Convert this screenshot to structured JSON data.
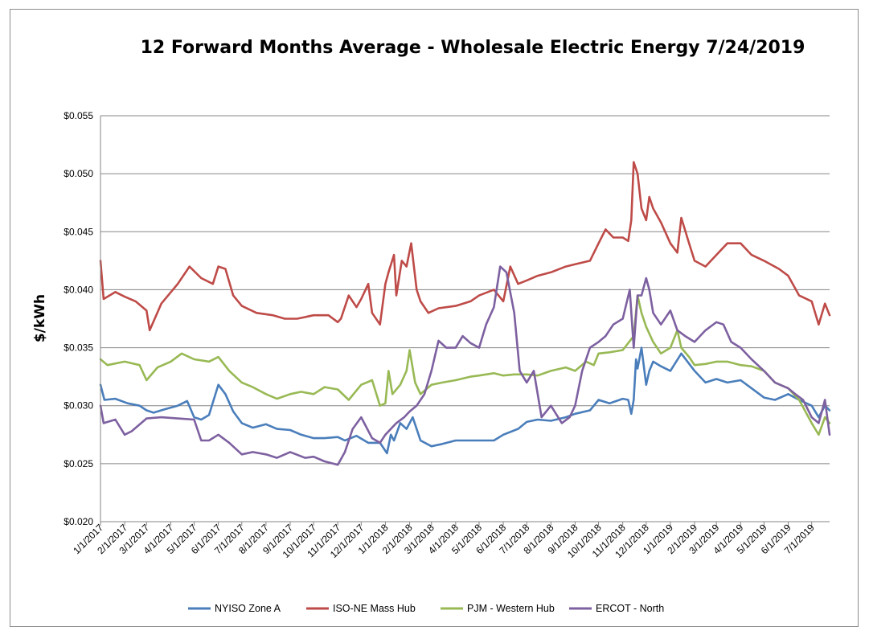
{
  "chart_data": {
    "type": "line",
    "title": "12 Forward Months Average - Wholesale Electric Energy 7/24/2019",
    "xlabel": "",
    "ylabel": "$/kWh",
    "ylim": [
      0.02,
      0.055
    ],
    "yticks": [
      0.02,
      0.025,
      0.03,
      0.035,
      0.04,
      0.045,
      0.05,
      0.055
    ],
    "ytick_labels": [
      "$0.020",
      "$0.025",
      "$0.030",
      "$0.035",
      "$0.040",
      "$0.045",
      "$0.050",
      "$0.055"
    ],
    "xlim": [
      "2017-01-01",
      "2019-07-24"
    ],
    "xtick_labels": [
      "1/1/2017",
      "2/1/2017",
      "3/1/2017",
      "4/1/2017",
      "5/1/2017",
      "6/1/2017",
      "7/1/2017",
      "8/1/2017",
      "9/1/2017",
      "10/1/2017",
      "11/1/2017",
      "12/1/2017",
      "1/1/2018",
      "2/1/2018",
      "3/1/2018",
      "4/1/2018",
      "5/1/2018",
      "6/1/2018",
      "7/1/2018",
      "8/1/2018",
      "9/1/2018",
      "10/1/2018",
      "11/1/2018",
      "12/1/2018",
      "1/1/2019",
      "2/1/2019",
      "3/1/2019",
      "4/1/2019",
      "5/1/2019",
      "6/1/2019",
      "7/1/2019"
    ],
    "grid": "horizontal",
    "legend_position": "bottom",
    "series": [
      {
        "name": "NYISO Zone A",
        "color": "#4a7ebb",
        "x": [
          "2017-01-01",
          "2017-01-06",
          "2017-01-20",
          "2017-02-05",
          "2017-02-20",
          "2017-03-01",
          "2017-03-10",
          "2017-03-25",
          "2017-04-10",
          "2017-04-22",
          "2017-05-01",
          "2017-05-10",
          "2017-05-20",
          "2017-06-01",
          "2017-06-10",
          "2017-06-20",
          "2017-07-01",
          "2017-07-15",
          "2017-08-01",
          "2017-08-15",
          "2017-09-01",
          "2017-09-15",
          "2017-10-01",
          "2017-10-15",
          "2017-11-01",
          "2017-11-10",
          "2017-11-25",
          "2017-12-10",
          "2017-12-25",
          "2018-01-03",
          "2018-01-08",
          "2018-01-12",
          "2018-01-20",
          "2018-01-28",
          "2018-02-05",
          "2018-02-15",
          "2018-03-01",
          "2018-03-15",
          "2018-04-01",
          "2018-04-20",
          "2018-05-01",
          "2018-05-20",
          "2018-06-01",
          "2018-06-20",
          "2018-07-01",
          "2018-07-15",
          "2018-08-01",
          "2018-08-20",
          "2018-09-01",
          "2018-09-20",
          "2018-10-01",
          "2018-10-15",
          "2018-11-01",
          "2018-11-08",
          "2018-11-12",
          "2018-11-15",
          "2018-11-18",
          "2018-11-20",
          "2018-11-25",
          "2018-12-01",
          "2018-12-05",
          "2018-12-10",
          "2018-12-20",
          "2019-01-01",
          "2019-01-15",
          "2019-02-01",
          "2019-02-15",
          "2019-03-01",
          "2019-03-15",
          "2019-04-01",
          "2019-04-15",
          "2019-05-01",
          "2019-05-15",
          "2019-06-01",
          "2019-06-15",
          "2019-07-01",
          "2019-07-10",
          "2019-07-18",
          "2019-07-24"
        ],
        "y": [
          0.0318,
          0.0305,
          0.0306,
          0.0302,
          0.03,
          0.0296,
          0.0294,
          0.0297,
          0.03,
          0.0304,
          0.029,
          0.0288,
          0.0292,
          0.0318,
          0.031,
          0.0295,
          0.0285,
          0.0281,
          0.0284,
          0.028,
          0.0279,
          0.0275,
          0.0272,
          0.0272,
          0.0273,
          0.027,
          0.0274,
          0.0268,
          0.0268,
          0.0259,
          0.0275,
          0.027,
          0.0285,
          0.028,
          0.029,
          0.027,
          0.0265,
          0.0267,
          0.027,
          0.027,
          0.027,
          0.027,
          0.0275,
          0.028,
          0.0286,
          0.0288,
          0.0287,
          0.029,
          0.0293,
          0.0296,
          0.0305,
          0.0302,
          0.0306,
          0.0305,
          0.0293,
          0.0305,
          0.034,
          0.0332,
          0.035,
          0.0318,
          0.033,
          0.0338,
          0.0334,
          0.033,
          0.0345,
          0.033,
          0.032,
          0.0323,
          0.032,
          0.0322,
          0.0315,
          0.0307,
          0.0305,
          0.031,
          0.0305,
          0.03,
          0.029,
          0.03,
          0.0296
        ]
      },
      {
        "name": "ISO-NE Mass Hub",
        "color": "#be4b48",
        "x": [
          "2017-01-01",
          "2017-01-05",
          "2017-01-20",
          "2017-02-01",
          "2017-02-15",
          "2017-03-01",
          "2017-03-05",
          "2017-03-20",
          "2017-04-10",
          "2017-04-25",
          "2017-05-10",
          "2017-05-25",
          "2017-06-01",
          "2017-06-10",
          "2017-06-20",
          "2017-07-01",
          "2017-07-20",
          "2017-08-10",
          "2017-08-25",
          "2017-09-10",
          "2017-10-01",
          "2017-10-20",
          "2017-11-01",
          "2017-11-05",
          "2017-11-15",
          "2017-11-25",
          "2017-12-01",
          "2017-12-10",
          "2017-12-15",
          "2017-12-25",
          "2018-01-01",
          "2018-01-05",
          "2018-01-12",
          "2018-01-15",
          "2018-01-22",
          "2018-01-28",
          "2018-02-03",
          "2018-02-10",
          "2018-02-15",
          "2018-02-25",
          "2018-03-10",
          "2018-04-01",
          "2018-04-20",
          "2018-05-01",
          "2018-05-20",
          "2018-06-01",
          "2018-06-10",
          "2018-06-20",
          "2018-07-01",
          "2018-07-15",
          "2018-08-01",
          "2018-08-20",
          "2018-09-01",
          "2018-09-20",
          "2018-10-01",
          "2018-10-10",
          "2018-10-20",
          "2018-11-01",
          "2018-11-08",
          "2018-11-12",
          "2018-11-15",
          "2018-11-20",
          "2018-11-25",
          "2018-12-01",
          "2018-12-05",
          "2018-12-10",
          "2018-12-20",
          "2019-01-01",
          "2019-01-10",
          "2019-01-15",
          "2019-01-25",
          "2019-02-01",
          "2019-02-15",
          "2019-03-01",
          "2019-03-15",
          "2019-04-01",
          "2019-04-15",
          "2019-05-01",
          "2019-05-20",
          "2019-06-01",
          "2019-06-15",
          "2019-07-01",
          "2019-07-10",
          "2019-07-18",
          "2019-07-24"
        ],
        "y": [
          0.0425,
          0.0392,
          0.0398,
          0.0394,
          0.039,
          0.0382,
          0.0365,
          0.0388,
          0.0405,
          0.042,
          0.041,
          0.0405,
          0.042,
          0.0418,
          0.0395,
          0.0386,
          0.038,
          0.0378,
          0.0375,
          0.0375,
          0.0378,
          0.0378,
          0.0372,
          0.0375,
          0.0395,
          0.0385,
          0.0392,
          0.0405,
          0.038,
          0.037,
          0.0405,
          0.0415,
          0.043,
          0.0395,
          0.0425,
          0.042,
          0.044,
          0.04,
          0.039,
          0.038,
          0.0384,
          0.0386,
          0.039,
          0.0395,
          0.04,
          0.039,
          0.042,
          0.0405,
          0.0408,
          0.0412,
          0.0415,
          0.042,
          0.0422,
          0.0425,
          0.044,
          0.0452,
          0.0445,
          0.0445,
          0.0442,
          0.046,
          0.051,
          0.05,
          0.047,
          0.046,
          0.048,
          0.047,
          0.0458,
          0.044,
          0.0432,
          0.0462,
          0.044,
          0.0425,
          0.042,
          0.043,
          0.044,
          0.044,
          0.043,
          0.0425,
          0.0418,
          0.0412,
          0.0395,
          0.039,
          0.037,
          0.0388,
          0.0378
        ]
      },
      {
        "name": "PJM - Western Hub",
        "color": "#98b954",
        "x": [
          "2017-01-01",
          "2017-01-10",
          "2017-02-01",
          "2017-02-20",
          "2017-03-01",
          "2017-03-15",
          "2017-04-01",
          "2017-04-15",
          "2017-05-01",
          "2017-05-20",
          "2017-06-01",
          "2017-06-15",
          "2017-07-01",
          "2017-07-15",
          "2017-08-01",
          "2017-08-15",
          "2017-09-01",
          "2017-09-15",
          "2017-10-01",
          "2017-10-15",
          "2017-11-01",
          "2017-11-15",
          "2017-12-01",
          "2017-12-15",
          "2017-12-25",
          "2018-01-01",
          "2018-01-05",
          "2018-01-10",
          "2018-01-20",
          "2018-01-28",
          "2018-02-01",
          "2018-02-08",
          "2018-02-15",
          "2018-03-01",
          "2018-03-15",
          "2018-04-01",
          "2018-04-20",
          "2018-05-01",
          "2018-05-20",
          "2018-06-01",
          "2018-06-15",
          "2018-07-01",
          "2018-07-15",
          "2018-08-01",
          "2018-08-20",
          "2018-09-01",
          "2018-09-15",
          "2018-09-25",
          "2018-10-01",
          "2018-10-15",
          "2018-11-01",
          "2018-11-15",
          "2018-11-20",
          "2018-11-25",
          "2018-12-01",
          "2018-12-10",
          "2018-12-20",
          "2019-01-01",
          "2019-01-10",
          "2019-01-15",
          "2019-01-25",
          "2019-02-01",
          "2019-02-15",
          "2019-03-01",
          "2019-03-15",
          "2019-04-01",
          "2019-04-15",
          "2019-05-01",
          "2019-05-15",
          "2019-06-01",
          "2019-06-15",
          "2019-07-01",
          "2019-07-10",
          "2019-07-18",
          "2019-07-24"
        ],
        "y": [
          0.034,
          0.0335,
          0.0338,
          0.0335,
          0.0322,
          0.0333,
          0.0338,
          0.0345,
          0.034,
          0.0338,
          0.0342,
          0.033,
          0.032,
          0.0316,
          0.031,
          0.0306,
          0.031,
          0.0312,
          0.031,
          0.0316,
          0.0314,
          0.0305,
          0.0318,
          0.0322,
          0.03,
          0.0302,
          0.033,
          0.031,
          0.0318,
          0.033,
          0.0348,
          0.032,
          0.031,
          0.0318,
          0.032,
          0.0322,
          0.0325,
          0.0326,
          0.0328,
          0.0326,
          0.0327,
          0.0327,
          0.0326,
          0.033,
          0.0333,
          0.033,
          0.0338,
          0.0335,
          0.0345,
          0.0346,
          0.0348,
          0.036,
          0.0395,
          0.038,
          0.0368,
          0.0355,
          0.0345,
          0.035,
          0.0365,
          0.035,
          0.0342,
          0.0335,
          0.0336,
          0.0338,
          0.0338,
          0.0335,
          0.0334,
          0.033,
          0.032,
          0.0315,
          0.0305,
          0.0285,
          0.0275,
          0.029,
          0.0285
        ]
      },
      {
        "name": "ERCOT - North",
        "color": "#7d60a0",
        "x": [
          "2017-01-01",
          "2017-01-05",
          "2017-01-20",
          "2017-02-01",
          "2017-02-10",
          "2017-03-01",
          "2017-03-20",
          "2017-04-10",
          "2017-05-01",
          "2017-05-10",
          "2017-05-20",
          "2017-06-01",
          "2017-06-15",
          "2017-07-01",
          "2017-07-15",
          "2017-08-01",
          "2017-08-15",
          "2017-09-01",
          "2017-09-20",
          "2017-10-01",
          "2017-10-15",
          "2017-11-01",
          "2017-11-10",
          "2017-11-20",
          "2017-12-01",
          "2017-12-15",
          "2017-12-25",
          "2018-01-01",
          "2018-01-15",
          "2018-01-25",
          "2018-02-01",
          "2018-02-10",
          "2018-02-20",
          "2018-03-01",
          "2018-03-10",
          "2018-03-20",
          "2018-04-01",
          "2018-04-10",
          "2018-04-20",
          "2018-05-01",
          "2018-05-10",
          "2018-05-20",
          "2018-05-28",
          "2018-06-05",
          "2018-06-15",
          "2018-06-22",
          "2018-07-01",
          "2018-07-10",
          "2018-07-20",
          "2018-08-01",
          "2018-08-15",
          "2018-08-25",
          "2018-09-01",
          "2018-09-10",
          "2018-09-20",
          "2018-10-01",
          "2018-10-10",
          "2018-10-20",
          "2018-11-01",
          "2018-11-10",
          "2018-11-15",
          "2018-11-20",
          "2018-11-25",
          "2018-12-01",
          "2018-12-05",
          "2018-12-10",
          "2018-12-20",
          "2019-01-01",
          "2019-01-10",
          "2019-01-20",
          "2019-02-01",
          "2019-02-15",
          "2019-03-01",
          "2019-03-10",
          "2019-03-20",
          "2019-04-01",
          "2019-04-15",
          "2019-05-01",
          "2019-05-15",
          "2019-06-01",
          "2019-06-10",
          "2019-06-20",
          "2019-07-01",
          "2019-07-10",
          "2019-07-18",
          "2019-07-24"
        ],
        "y": [
          0.03,
          0.0285,
          0.0288,
          0.0275,
          0.0278,
          0.0289,
          0.029,
          0.0289,
          0.0288,
          0.027,
          0.027,
          0.0275,
          0.0268,
          0.0258,
          0.026,
          0.0258,
          0.0255,
          0.026,
          0.0255,
          0.0256,
          0.0252,
          0.0249,
          0.026,
          0.028,
          0.029,
          0.0272,
          0.0268,
          0.0275,
          0.0285,
          0.029,
          0.0295,
          0.03,
          0.031,
          0.033,
          0.0356,
          0.035,
          0.035,
          0.036,
          0.0354,
          0.035,
          0.037,
          0.0385,
          0.042,
          0.0415,
          0.038,
          0.033,
          0.032,
          0.033,
          0.029,
          0.03,
          0.0285,
          0.029,
          0.03,
          0.033,
          0.035,
          0.0355,
          0.036,
          0.037,
          0.0375,
          0.04,
          0.035,
          0.0395,
          0.0395,
          0.041,
          0.04,
          0.038,
          0.037,
          0.0382,
          0.0365,
          0.036,
          0.0355,
          0.0365,
          0.0372,
          0.037,
          0.0355,
          0.035,
          0.034,
          0.033,
          0.032,
          0.0315,
          0.031,
          0.0305,
          0.029,
          0.0285,
          0.0305,
          0.0275
        ]
      }
    ]
  }
}
